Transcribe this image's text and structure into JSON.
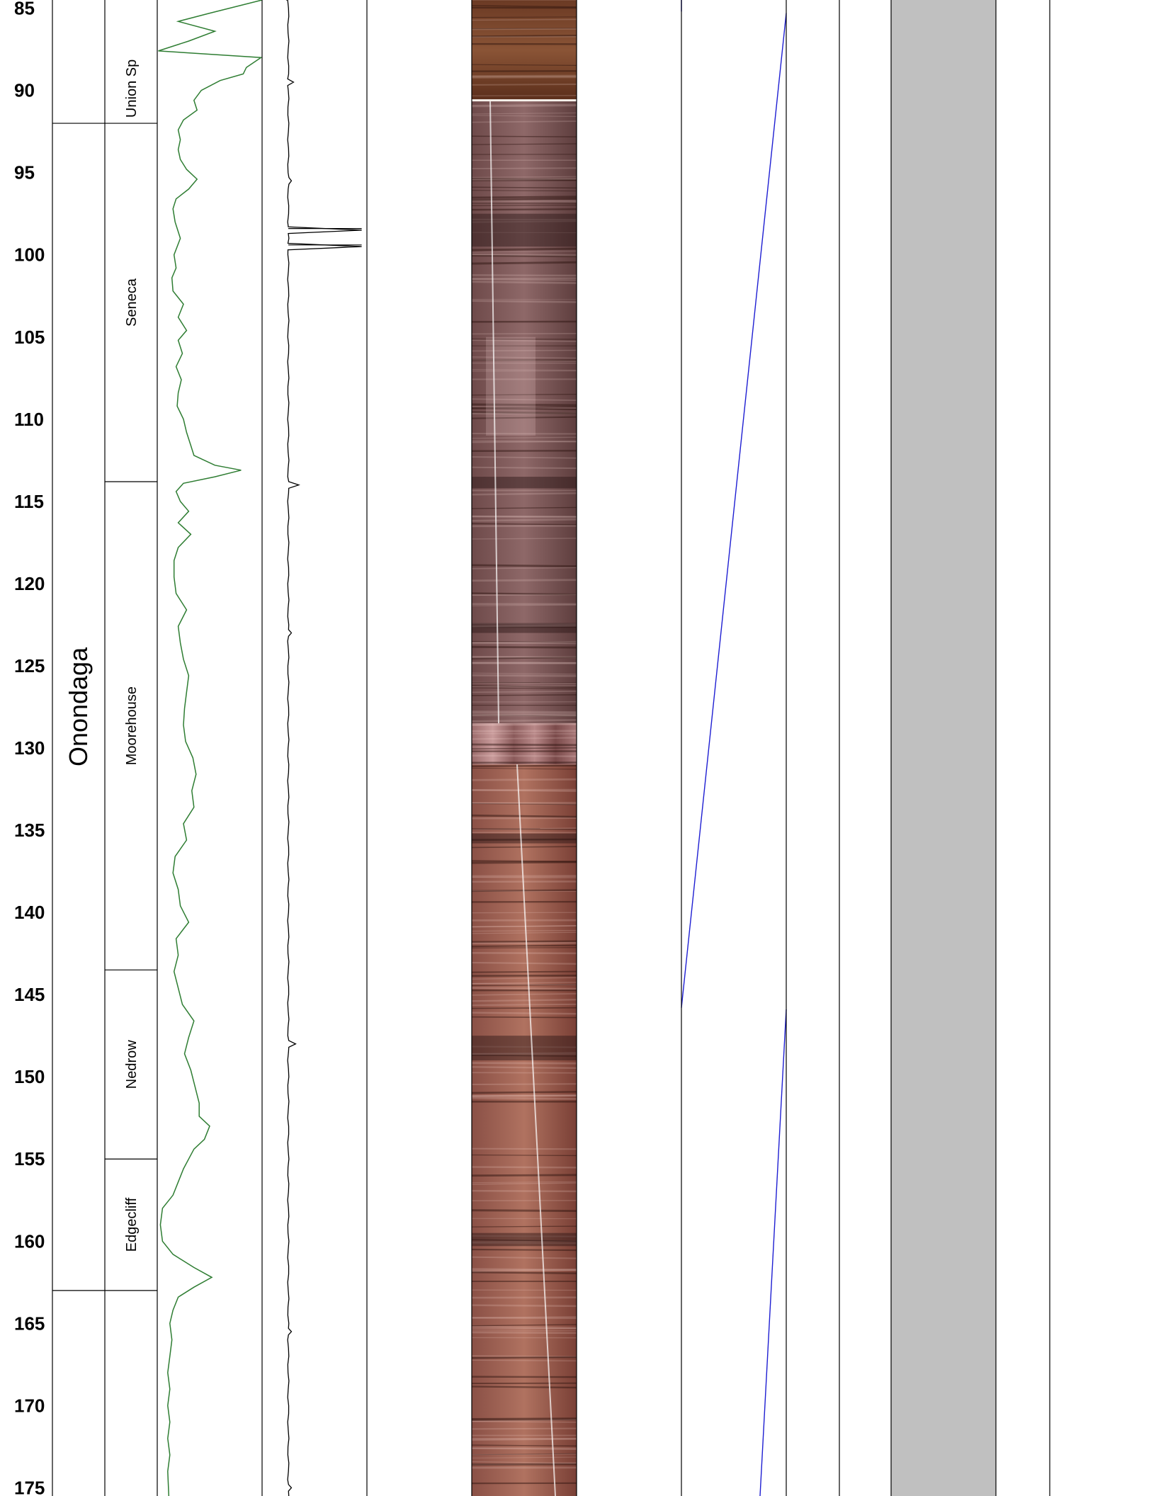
{
  "chart_data": {
    "type": "well-log",
    "depth_axis": {
      "range": [
        84.5,
        175.5
      ],
      "ticks": [
        85,
        90,
        95,
        100,
        105,
        110,
        115,
        120,
        125,
        130,
        135,
        140,
        145,
        150,
        155,
        160,
        165,
        170,
        175
      ]
    },
    "formations": [
      {
        "name": "Onondaga",
        "top": 92.0,
        "base": 163.0
      }
    ],
    "members": [
      {
        "name": "Union Sp",
        "top": 84.5,
        "base": 92.0
      },
      {
        "name": "Seneca",
        "top": 92.0,
        "base": 113.8
      },
      {
        "name": "Moorehouse",
        "top": 113.8,
        "base": 143.5
      },
      {
        "name": "Nedrow",
        "top": 143.5,
        "base": 155.0
      },
      {
        "name": "Edgecliff",
        "top": 155.0,
        "base": 163.0
      }
    ],
    "gamma_curve": {
      "color": "#2e7d32",
      "points": [
        [
          84.5,
          1.0
        ],
        [
          85.3,
          0.5
        ],
        [
          85.8,
          0.2
        ],
        [
          86.4,
          0.55
        ],
        [
          87.0,
          0.3
        ],
        [
          87.6,
          0.01
        ],
        [
          88.0,
          0.99
        ],
        [
          88.6,
          0.85
        ],
        [
          89.0,
          0.82
        ],
        [
          89.4,
          0.6
        ],
        [
          90.0,
          0.42
        ],
        [
          90.6,
          0.35
        ],
        [
          91.2,
          0.38
        ],
        [
          91.8,
          0.25
        ],
        [
          92.4,
          0.2
        ],
        [
          93.0,
          0.22
        ],
        [
          93.6,
          0.2
        ],
        [
          94.2,
          0.22
        ],
        [
          94.8,
          0.28
        ],
        [
          95.4,
          0.38
        ],
        [
          96.0,
          0.3
        ],
        [
          96.6,
          0.18
        ],
        [
          97.2,
          0.15
        ],
        [
          98.0,
          0.17
        ],
        [
          99.0,
          0.22
        ],
        [
          100.0,
          0.16
        ],
        [
          100.8,
          0.18
        ],
        [
          101.4,
          0.14
        ],
        [
          102.2,
          0.15
        ],
        [
          103.0,
          0.25
        ],
        [
          103.8,
          0.2
        ],
        [
          104.6,
          0.28
        ],
        [
          105.2,
          0.2
        ],
        [
          106.0,
          0.24
        ],
        [
          106.8,
          0.18
        ],
        [
          107.6,
          0.23
        ],
        [
          108.4,
          0.2
        ],
        [
          109.2,
          0.19
        ],
        [
          110.0,
          0.25
        ],
        [
          110.8,
          0.28
        ],
        [
          111.6,
          0.32
        ],
        [
          112.2,
          0.35
        ],
        [
          112.8,
          0.55
        ],
        [
          113.1,
          0.8
        ],
        [
          113.5,
          0.55
        ],
        [
          113.9,
          0.25
        ],
        [
          114.4,
          0.18
        ],
        [
          115.0,
          0.22
        ],
        [
          115.6,
          0.3
        ],
        [
          116.3,
          0.2
        ],
        [
          117.0,
          0.32
        ],
        [
          117.8,
          0.2
        ],
        [
          118.6,
          0.16
        ],
        [
          119.6,
          0.16
        ],
        [
          120.6,
          0.18
        ],
        [
          121.6,
          0.28
        ],
        [
          122.6,
          0.2
        ],
        [
          123.6,
          0.22
        ],
        [
          124.6,
          0.25
        ],
        [
          125.6,
          0.3
        ],
        [
          126.6,
          0.28
        ],
        [
          127.6,
          0.26
        ],
        [
          128.6,
          0.25
        ],
        [
          129.6,
          0.27
        ],
        [
          130.6,
          0.34
        ],
        [
          131.6,
          0.37
        ],
        [
          132.6,
          0.33
        ],
        [
          133.6,
          0.35
        ],
        [
          134.6,
          0.25
        ],
        [
          135.6,
          0.28
        ],
        [
          136.6,
          0.17
        ],
        [
          137.6,
          0.15
        ],
        [
          138.6,
          0.2
        ],
        [
          139.6,
          0.22
        ],
        [
          140.6,
          0.3
        ],
        [
          141.6,
          0.18
        ],
        [
          142.6,
          0.2
        ],
        [
          143.6,
          0.16
        ],
        [
          144.6,
          0.2
        ],
        [
          145.6,
          0.24
        ],
        [
          146.6,
          0.35
        ],
        [
          147.6,
          0.3
        ],
        [
          148.6,
          0.26
        ],
        [
          149.6,
          0.32
        ],
        [
          150.6,
          0.36
        ],
        [
          151.6,
          0.4
        ],
        [
          152.4,
          0.4
        ],
        [
          153.0,
          0.5
        ],
        [
          153.8,
          0.45
        ],
        [
          154.4,
          0.35
        ],
        [
          155.0,
          0.3
        ],
        [
          155.6,
          0.25
        ],
        [
          156.4,
          0.2
        ],
        [
          157.2,
          0.15
        ],
        [
          158.0,
          0.05
        ],
        [
          159.0,
          0.03
        ],
        [
          160.0,
          0.05
        ],
        [
          160.8,
          0.15
        ],
        [
          161.6,
          0.35
        ],
        [
          162.2,
          0.52
        ],
        [
          162.8,
          0.35
        ],
        [
          163.4,
          0.2
        ],
        [
          164.2,
          0.15
        ],
        [
          165.0,
          0.12
        ],
        [
          166.0,
          0.14
        ],
        [
          167.0,
          0.12
        ],
        [
          168.0,
          0.1
        ],
        [
          169.0,
          0.12
        ],
        [
          170.0,
          0.1
        ],
        [
          171.0,
          0.12
        ],
        [
          172.0,
          0.1
        ],
        [
          173.0,
          0.12
        ],
        [
          174.0,
          0.1
        ],
        [
          175.5,
          0.11
        ]
      ]
    },
    "caliper_curve": {
      "color": "#000000",
      "baseline": 0.25,
      "spikes": [
        {
          "depth": 89.5,
          "value": 0.3
        },
        {
          "depth": 95.5,
          "value": 0.28
        },
        {
          "depth": 98.4,
          "value": 0.95
        },
        {
          "depth": 99.4,
          "value": 0.95
        },
        {
          "depth": 113.8,
          "value": 0.35
        },
        {
          "depth": 122.8,
          "value": 0.28
        },
        {
          "depth": 148.0,
          "value": 0.32
        },
        {
          "depth": 165.5,
          "value": 0.28
        },
        {
          "depth": 175.0,
          "value": 0.28
        }
      ]
    },
    "core_image": {
      "sections": [
        {
          "top": 84.5,
          "base": 90.6,
          "tone": "brown-dark"
        },
        {
          "top": 90.6,
          "base": 128.5,
          "tone": "mauve"
        },
        {
          "top": 128.5,
          "base": 131.0,
          "tone": "streaked"
        },
        {
          "top": 131.0,
          "base": 175.5,
          "tone": "reddish"
        }
      ]
    },
    "deviation_curve": {
      "color": "#1e1ed2",
      "points": [
        [
          84.5,
          0.0
        ],
        [
          85.2,
          0.0
        ],
        [
          85.3,
          1.0
        ],
        [
          145.8,
          0.0
        ],
        [
          145.9,
          1.0
        ],
        [
          175.5,
          0.75
        ]
      ]
    },
    "shaded_band": {
      "color": "#c0c0c0"
    },
    "grid": false,
    "legend": ""
  }
}
